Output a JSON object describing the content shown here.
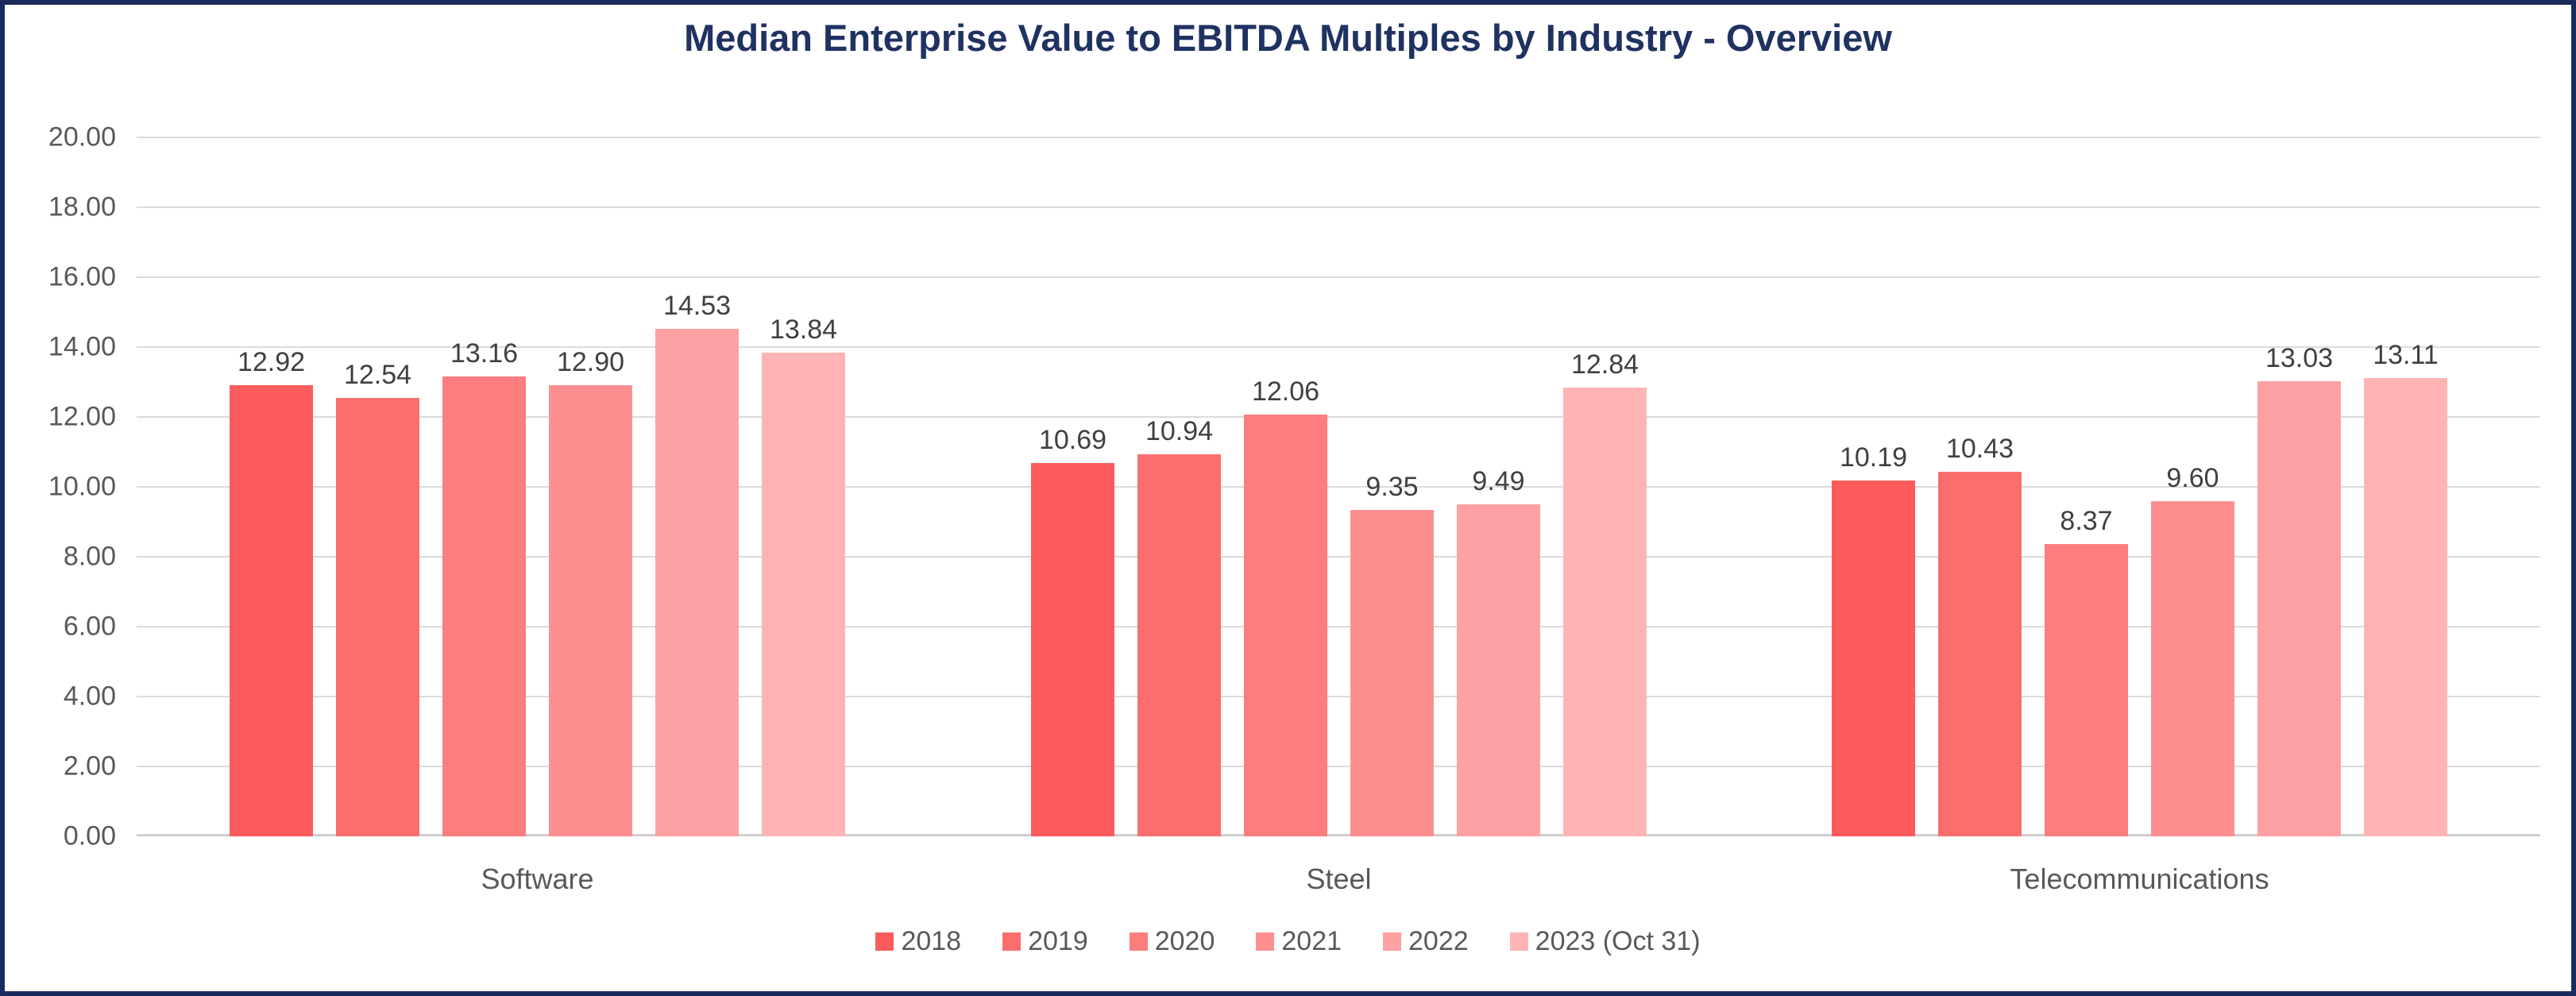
{
  "title": "Median Enterprise Value to EBITDA Multiples by Industry - Overview",
  "chart_data": {
    "type": "bar",
    "title": "Median Enterprise Value to EBITDA Multiples by Industry - Overview",
    "categories": [
      "Software",
      "Steel",
      "Telecommunications"
    ],
    "series": [
      {
        "name": "2018",
        "color": "#FC5B5C",
        "values": [
          12.92,
          10.69,
          10.19
        ]
      },
      {
        "name": "2019",
        "color": "#FC6D6E",
        "values": [
          12.54,
          10.94,
          10.43
        ]
      },
      {
        "name": "2020",
        "color": "#FD7C7D",
        "values": [
          13.16,
          12.06,
          8.37
        ]
      },
      {
        "name": "2021",
        "color": "#FD8F90",
        "values": [
          12.9,
          9.35,
          9.6
        ]
      },
      {
        "name": "2022",
        "color": "#FEA1A2",
        "values": [
          14.53,
          9.49,
          13.03
        ]
      },
      {
        "name": "2023 (Oct 31)",
        "color": "#FEB4B5",
        "values": [
          13.84,
          12.84,
          13.11
        ]
      }
    ],
    "y_axis": {
      "min": 0,
      "max": 20,
      "step": 2,
      "tick_labels": [
        "0.00",
        "2.00",
        "4.00",
        "6.00",
        "8.00",
        "10.00",
        "12.00",
        "14.00",
        "16.00",
        "18.00",
        "20.00"
      ]
    },
    "value_label_decimals": 2,
    "grid": true,
    "legend_position": "bottom",
    "colors": {
      "title_text": "#1F3262",
      "frame_border": "#1A2A5C",
      "gridline": "#DBDBDB",
      "axis_line": "#D0CECE",
      "tick_text": "#595959",
      "value_label_text": "#404040",
      "category_text": "#595959",
      "legend_text": "#595959"
    }
  }
}
